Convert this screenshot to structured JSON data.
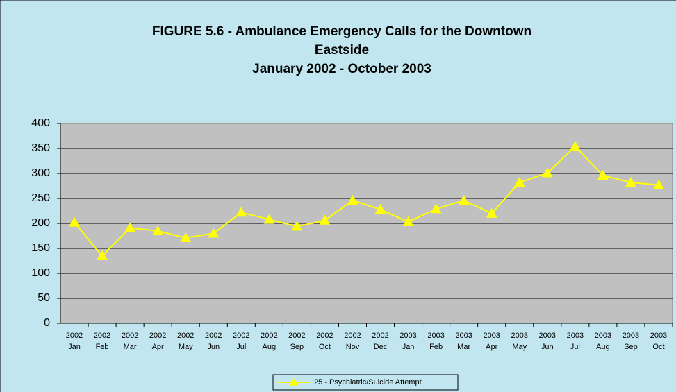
{
  "chart_data": {
    "type": "line",
    "title": [
      "FIGURE 5.6 - Ambulance Emergency Calls for the Downtown",
      "Eastside",
      "January 2002 - October 2003"
    ],
    "categories": [
      [
        "2002",
        "Jan"
      ],
      [
        "2002",
        "Feb"
      ],
      [
        "2002",
        "Mar"
      ],
      [
        "2002",
        "Apr"
      ],
      [
        "2002",
        "May"
      ],
      [
        "2002",
        "Jun"
      ],
      [
        "2002",
        "Jul"
      ],
      [
        "2002",
        "Aug"
      ],
      [
        "2002",
        "Sep"
      ],
      [
        "2002",
        "Oct"
      ],
      [
        "2002",
        "Nov"
      ],
      [
        "2002",
        "Dec"
      ],
      [
        "2003",
        "Jan"
      ],
      [
        "2003",
        "Feb"
      ],
      [
        "2003",
        "Mar"
      ],
      [
        "2003",
        "Apr"
      ],
      [
        "2003",
        "May"
      ],
      [
        "2003",
        "Jun"
      ],
      [
        "2003",
        "Jul"
      ],
      [
        "2003",
        "Aug"
      ],
      [
        "2003",
        "Sep"
      ],
      [
        "2003",
        "Oct"
      ]
    ],
    "series": [
      {
        "name": "25 - Psychiatric/Suicide Attempt",
        "color": "#ffff00",
        "values": [
          202,
          135,
          191,
          185,
          171,
          180,
          222,
          208,
          194,
          206,
          246,
          228,
          203,
          229,
          246,
          220,
          282,
          301,
          354,
          296,
          282,
          277
        ]
      }
    ],
    "ylim": [
      0,
      400
    ],
    "yticks": [
      0,
      50,
      100,
      150,
      200,
      250,
      300,
      350,
      400
    ],
    "grid": true,
    "legend": "bottom"
  }
}
